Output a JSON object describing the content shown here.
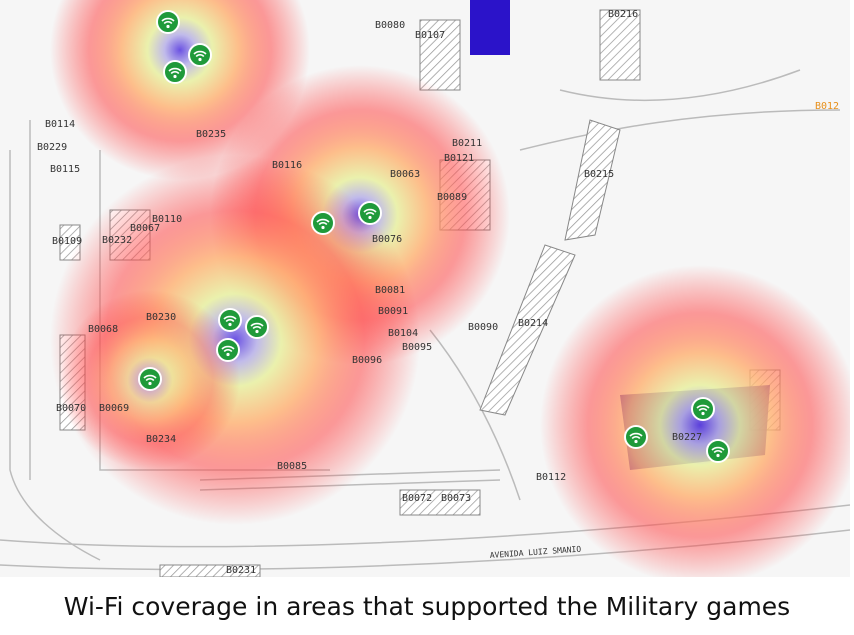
{
  "map": {
    "labels": [
      "B0080",
      "B0107",
      "B0216",
      "B012",
      "B0114",
      "B0229",
      "B0115",
      "B0235",
      "B0116",
      "B0063",
      "B0211",
      "B0121",
      "B0089",
      "B0215",
      "B0110",
      "B0067",
      "B0109",
      "B0232",
      "B0076",
      "B0214",
      "B0090",
      "B0081",
      "B0091",
      "B0104",
      "B0095",
      "B0068",
      "B0230",
      "B0096",
      "B0070",
      "B0069",
      "B0234",
      "B0085",
      "B0112",
      "B0072",
      "B0073",
      "B0231",
      "B0227"
    ],
    "street": "AVENIDA LUIZ SMANIO"
  },
  "caption": "Wi-Fi coverage in areas that supported the Military games"
}
